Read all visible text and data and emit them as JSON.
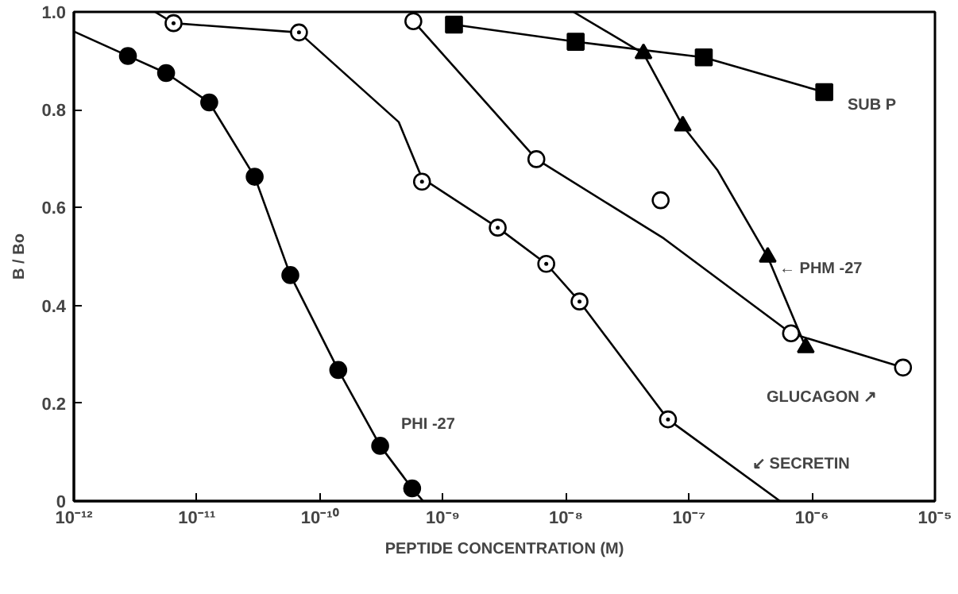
{
  "chart_data": {
    "type": "scatter",
    "xlabel": "PEPTIDE CONCENTRATION (M)",
    "ylabel": "B / Bo",
    "log": "x",
    "xlim": [
      1e-12,
      1e-05
    ],
    "ylim": [
      0,
      1
    ],
    "xticks": [
      {
        "value": 1e-12,
        "label": "10⁻¹²"
      },
      {
        "value": 1e-11,
        "label": "10⁻¹¹"
      },
      {
        "value": 1e-10,
        "label": "10⁻¹⁰"
      },
      {
        "value": 1e-09,
        "label": "10⁻⁹"
      },
      {
        "value": 1e-08,
        "label": "10⁻⁸"
      },
      {
        "value": 1e-07,
        "label": "10⁻⁷"
      },
      {
        "value": 1e-06,
        "label": "10⁻⁶"
      },
      {
        "value": 1e-05,
        "label": "10⁻⁵"
      }
    ],
    "yticks": [
      0,
      0.2,
      0.4,
      0.6,
      0.8,
      {
        "value": 1,
        "label": "1.0"
      }
    ],
    "grid": false,
    "series": [
      {
        "type": "line",
        "marker": "none",
        "color": "#000000",
        "x": [
          1e-12,
          2.75e-12,
          5.62e-12,
          1.26e-11,
          2.95e-11,
          5.75e-11,
          1.41e-10,
          3.09e-10,
          5.62e-10,
          6.92e-10
        ],
        "values": [
          0.96,
          0.91,
          0.875,
          0.815,
          0.663,
          0.462,
          0.268,
          0.113,
          0.026,
          0
        ]
      },
      {
        "type": "line",
        "marker": "none",
        "color": "#000000",
        "x": [
          4.57e-12,
          6.46e-12,
          6.76e-11,
          4.37e-10,
          6.76e-10,
          2.79e-09,
          6.92e-09,
          1.29e-08,
          6.76e-08,
          5.5e-07
        ],
        "values": [
          1.0,
          0.977,
          0.958,
          0.775,
          0.66,
          0.559,
          0.485,
          0.408,
          0.167,
          0
        ]
      },
      {
        "type": "line",
        "marker": "none",
        "color": "#000000",
        "x": [
          5.75e-10,
          5.75e-09,
          6.24e-08,
          6.76e-07,
          5.5e-06
        ],
        "values": [
          0.981,
          0.699,
          0.537,
          0.343,
          0.273
        ]
      },
      {
        "type": "line",
        "marker": "none",
        "color": "#000000",
        "x": [
          1.23e-09,
          1.2e-08,
          1.32e-07,
          1.26e-06
        ],
        "values": [
          0.974,
          0.939,
          0.907,
          0.836
        ]
      },
      {
        "type": "line",
        "marker": "none",
        "color": "#000000",
        "x": [
          1.15e-08,
          4.27e-08,
          8.91e-08,
          1.7e-07,
          4.37e-07,
          8.91e-07
        ],
        "values": [
          1.0,
          0.915,
          0.767,
          0.677,
          0.499,
          0.314
        ]
      },
      {
        "marker": "circle",
        "color": "#000000",
        "x": [
          2.75e-12,
          5.62e-12,
          1.26e-11,
          2.95e-11,
          5.75e-11,
          1.41e-10,
          3.09e-10,
          5.62e-10
        ],
        "values": [
          0.91,
          0.875,
          0.815,
          0.663,
          0.462,
          0.268,
          0.113,
          0.026
        ]
      },
      {
        "marker": "circle_dot",
        "color": "#000000",
        "x": [
          6.46e-12,
          6.76e-11,
          6.76e-10,
          2.79e-09,
          6.92e-09,
          1.29e-08,
          6.76e-08
        ],
        "values": [
          0.977,
          0.958,
          0.653,
          0.559,
          0.485,
          0.408,
          0.167
        ]
      },
      {
        "marker": "circle_open",
        "color": "#000000",
        "x": [
          5.75e-10,
          5.75e-09,
          5.89e-08,
          6.76e-07,
          5.5e-06
        ],
        "values": [
          0.981,
          0.699,
          0.615,
          0.343,
          0.273
        ]
      },
      {
        "marker": "square",
        "color": "#000000",
        "x": [
          1.23e-09,
          1.2e-08,
          1.32e-07,
          1.26e-06
        ],
        "values": [
          0.974,
          0.939,
          0.907,
          0.836
        ]
      },
      {
        "marker": "triangle",
        "color": "#000000",
        "x": [
          4.27e-08,
          8.91e-08,
          4.37e-07,
          8.91e-07
        ],
        "values": [
          0.915,
          0.767,
          0.499,
          0.314
        ]
      }
    ],
    "annotations": [
      "SUB P",
      "← PHM -27",
      "GLUCAGON ↗",
      "↙ SECRETIN",
      "PHI -27"
    ]
  }
}
